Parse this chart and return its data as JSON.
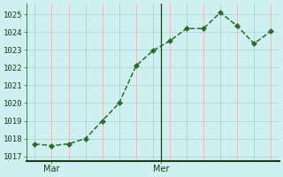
{
  "x_pts": [
    0,
    1,
    2,
    3,
    4,
    5,
    6,
    7,
    8,
    9,
    10,
    11,
    12,
    13,
    14
  ],
  "y_pts": [
    1017.7,
    1017.6,
    1017.7,
    1018.0,
    1019.0,
    1020.0,
    1022.1,
    1022.95,
    1023.5,
    1024.2,
    1024.2,
    1025.1,
    1024.35,
    1023.35,
    1024.05
  ],
  "xlim": [
    -0.5,
    14.5
  ],
  "ylim": [
    1016.75,
    1025.6
  ],
  "yticks": [
    1017,
    1018,
    1019,
    1020,
    1021,
    1022,
    1023,
    1024,
    1025
  ],
  "mar_x": 1.0,
  "mer_x": 7.5,
  "vline_x": 7.5,
  "line_color": "#2d6a2d",
  "bg_color": "#cff0f0",
  "grid_h_color": "#a8d8d8",
  "grid_v_color": "#e8b8b8",
  "marker_size": 3.0,
  "linewidth": 1.1,
  "xlabel_fontsize": 7,
  "ylabel_fontsize": 6.5
}
